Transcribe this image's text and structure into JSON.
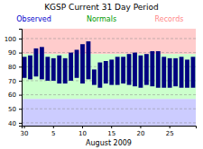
{
  "chart_data": {
    "type": "bar",
    "title": "KGSP Current 31 Day Period",
    "x_label": "August 2009",
    "categories": [
      "30",
      null,
      null,
      null,
      null,
      "5",
      null,
      null,
      null,
      null,
      "10",
      null,
      null,
      null,
      null,
      "15",
      null,
      null,
      null,
      null,
      "20",
      null,
      null,
      null,
      null,
      "25",
      null,
      null,
      null,
      null
    ],
    "bottoms": [
      72,
      71,
      73,
      71,
      70,
      70,
      68,
      68,
      70,
      72,
      68,
      71,
      67,
      65,
      68,
      67,
      67,
      68,
      67,
      66,
      65,
      67,
      66,
      65,
      65,
      65,
      66,
      65,
      65,
      65
    ],
    "values": [
      87,
      88,
      93,
      94,
      87,
      86,
      88,
      86,
      90,
      92,
      96,
      98,
      78,
      83,
      84,
      85,
      87,
      87,
      89,
      90,
      88,
      89,
      91,
      91,
      87,
      86,
      86,
      87,
      85,
      87
    ],
    "color": "#000080",
    "bands": [
      {
        "from": 89,
        "to": 107,
        "color": "#ffcccc"
      },
      {
        "from": 57,
        "to": 89,
        "color": "#ccffcc"
      },
      {
        "from": 38,
        "to": 57,
        "color": "#ccccff"
      }
    ],
    "annotations": [
      {
        "text": "Observed",
        "color": "#0000cc"
      },
      {
        "text": "Normals",
        "color": "#009900"
      },
      {
        "text": "Records",
        "color": "#ff8888"
      }
    ],
    "ylim": [
      38,
      107
    ],
    "yticks": [
      40,
      50,
      60,
      70,
      80,
      90,
      100
    ],
    "grid": true
  }
}
